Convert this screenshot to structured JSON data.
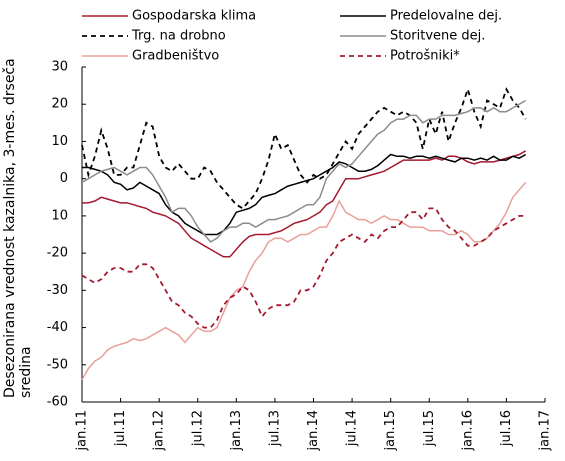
{
  "chart_data": {
    "type": "line",
    "y_label": "Desezonirana vrednost kazalnika, 3-mes. drseča sredina",
    "categories": [
      "jan.11",
      null,
      null,
      null,
      null,
      null,
      "jul.11",
      null,
      null,
      null,
      null,
      null,
      "jan.12",
      null,
      null,
      null,
      null,
      null,
      "jul.12",
      null,
      null,
      null,
      null,
      null,
      "jan.13",
      null,
      null,
      null,
      null,
      null,
      "jul.13",
      null,
      null,
      null,
      null,
      null,
      "jan.14",
      null,
      null,
      null,
      null,
      null,
      "jul.14",
      null,
      null,
      null,
      null,
      null,
      "jan.15",
      null,
      null,
      null,
      null,
      null,
      "jul.15",
      null,
      null,
      null,
      null,
      null,
      "jan.16",
      null,
      null,
      null,
      null,
      null,
      "jul.16",
      null,
      null,
      null,
      null,
      null,
      "jan.17"
    ],
    "ylim": [
      -60,
      30
    ],
    "yticks": [
      -60,
      -50,
      -40,
      -30,
      -20,
      {
        "value": -10,
        "label": "10"
      },
      0,
      10,
      20,
      30
    ],
    "grid": false,
    "series": [
      {
        "name": "Gospodarska klima",
        "color": "#a6192e",
        "dashed": false,
        "values": [
          -6.5,
          -6.5,
          -6,
          -5,
          -5.5,
          -6,
          -6.5,
          -6.5,
          -7,
          -7.5,
          -8,
          -9,
          -9.5,
          -10,
          -11,
          -12,
          -14,
          -16,
          -17,
          -18,
          -19,
          -20,
          -21,
          -21,
          -19,
          -17,
          -15.5,
          -15,
          -15,
          -15,
          -14.5,
          -14,
          -13,
          -12,
          -11.5,
          -11,
          -10,
          -9,
          -7,
          -6,
          -3,
          0,
          0,
          0,
          0.5,
          1,
          1.5,
          2,
          3,
          4,
          5,
          5,
          5,
          5,
          5,
          5.5,
          5,
          6,
          6,
          5.5,
          4.5,
          4,
          4.5,
          4.5,
          4.5,
          5,
          5.5,
          6,
          6.5,
          7.5,
          null,
          null,
          null
        ]
      },
      {
        "name": "Predelovalne dej.",
        "color": "#000000",
        "dashed": false,
        "values": [
          3,
          3,
          2.5,
          2,
          1,
          -1,
          -1.5,
          -3,
          -2.5,
          -1,
          -2,
          -3,
          -4,
          -7,
          -9,
          -10,
          -12,
          -13,
          -14,
          -15,
          -15,
          -15,
          -14,
          -12,
          -9,
          -8.5,
          -8,
          -7,
          -5,
          -4.5,
          -4,
          -3,
          -2,
          -1.5,
          -1,
          -0.5,
          0,
          1,
          2,
          3,
          4.5,
          4,
          3,
          2,
          2,
          2.5,
          3.5,
          5,
          6.5,
          6,
          6,
          5.5,
          6,
          6,
          5.5,
          6,
          5.5,
          5,
          4.5,
          5.5,
          5.5,
          5,
          5.5,
          5,
          6,
          5,
          5,
          6,
          5.5,
          6.5,
          null,
          null,
          null
        ]
      },
      {
        "name": "Trg. na drobno",
        "color": "#000000",
        "dashed": true,
        "values": [
          9,
          1,
          6,
          13,
          8,
          1,
          1,
          3,
          3,
          9,
          15,
          14,
          6,
          3,
          2,
          4,
          2,
          0,
          0,
          3,
          2,
          -1,
          -3,
          -5,
          -7,
          -8,
          -6,
          -4,
          0,
          5,
          12,
          8,
          9,
          5,
          1,
          -1,
          1,
          0,
          1,
          4,
          7,
          10,
          8,
          12,
          14,
          16,
          18,
          19,
          18,
          17,
          18,
          17,
          15,
          8,
          16,
          12,
          18,
          10,
          15,
          19,
          24,
          18,
          14,
          21,
          20,
          19,
          24,
          21,
          19,
          16,
          null,
          null,
          null
        ]
      },
      {
        "name": "Storitvene dej.",
        "color": "#8c8c8c",
        "dashed": false,
        "values": [
          -1,
          0,
          1,
          2,
          2.5,
          3,
          2,
          1,
          2,
          3,
          3,
          1,
          -2,
          -5,
          -9,
          -8,
          -8,
          -10,
          -13,
          -15,
          -17,
          -16,
          -14,
          -13,
          -13,
          -12,
          -12,
          -13,
          -12,
          -11,
          -11,
          -10.5,
          -10,
          -9,
          -8,
          -7,
          -7,
          -5,
          0,
          2,
          4,
          3,
          4,
          6,
          8,
          10,
          12,
          13,
          15,
          16,
          16,
          17,
          17,
          15,
          16,
          16,
          17,
          17,
          17,
          17.5,
          18,
          19,
          19,
          18,
          19,
          18,
          18,
          19,
          20,
          21,
          null,
          null,
          null
        ]
      },
      {
        "name": "Gradbeništvo",
        "color": "#e8a09a",
        "dashed": false,
        "values": [
          -54,
          -51,
          -49,
          -48,
          -46,
          -45,
          -44.5,
          -44,
          -43,
          -43.5,
          -43,
          -42,
          -41,
          -40,
          -41,
          -42,
          -44,
          -42,
          -40,
          -41,
          -41,
          -40,
          -36,
          -32,
          -30,
          -29,
          -25,
          -22,
          -20,
          -17,
          -16,
          -16,
          -17,
          -16,
          -15,
          -15,
          -14,
          -13,
          -13,
          -10,
          -6,
          -9,
          -10,
          -11,
          -11,
          -12,
          -11,
          -10,
          -11,
          -11,
          -12,
          -13,
          -13,
          -13,
          -14,
          -14,
          -14,
          -15,
          -15,
          -14,
          -15,
          -17,
          -17,
          -16,
          -14,
          -12,
          -9,
          -5,
          -3,
          -1,
          null,
          null,
          null
        ]
      },
      {
        "name": "Potrošniki*",
        "color": "#a6192e",
        "dashed": true,
        "values": [
          -26,
          -27,
          -28,
          -27,
          -25,
          -24,
          -24,
          -25,
          -25,
          -23,
          -23,
          -24,
          -27,
          -30,
          -33,
          -34,
          -36,
          -37,
          -39,
          -40,
          -40,
          -38,
          -34,
          -32,
          -31,
          -29,
          -30,
          -33,
          -37,
          -35,
          -34,
          -34,
          -34,
          -33,
          -30,
          -30,
          -29,
          -26,
          -22,
          -20,
          -17,
          -16,
          -15,
          -16,
          -17,
          -15,
          -16,
          -14,
          -13,
          -13,
          -11,
          -9,
          -9,
          -11,
          -8,
          -8,
          -11,
          -13,
          -14,
          -16,
          -18,
          -18,
          -17,
          -16,
          -14,
          -13,
          -12,
          -11,
          -10,
          -10,
          null,
          null,
          null
        ]
      }
    ]
  }
}
